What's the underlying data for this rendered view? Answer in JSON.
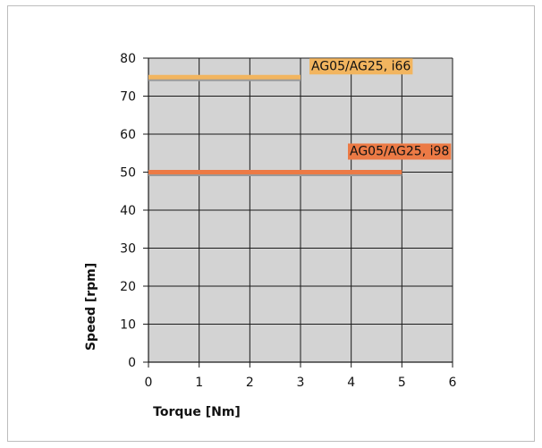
{
  "chart_data": {
    "type": "line",
    "title": "",
    "xlabel": "Torque [Nm]",
    "ylabel": "Speed [rpm]",
    "xlim": [
      0,
      6
    ],
    "ylim": [
      0,
      80
    ],
    "xticks": [
      0,
      1,
      2,
      3,
      4,
      5,
      6
    ],
    "yticks": [
      0,
      10,
      20,
      30,
      40,
      50,
      60,
      70,
      80
    ],
    "grid": true,
    "plot_background": "#d3d3d3",
    "series": [
      {
        "name": "AG05/AG25, i66",
        "x": [
          0,
          3
        ],
        "y": [
          75,
          75
        ],
        "color": "#f2b55f"
      },
      {
        "name": "AG05/AG25, i98",
        "x": [
          0,
          5
        ],
        "y": [
          50,
          50
        ],
        "color": "#ec7a45"
      }
    ]
  }
}
